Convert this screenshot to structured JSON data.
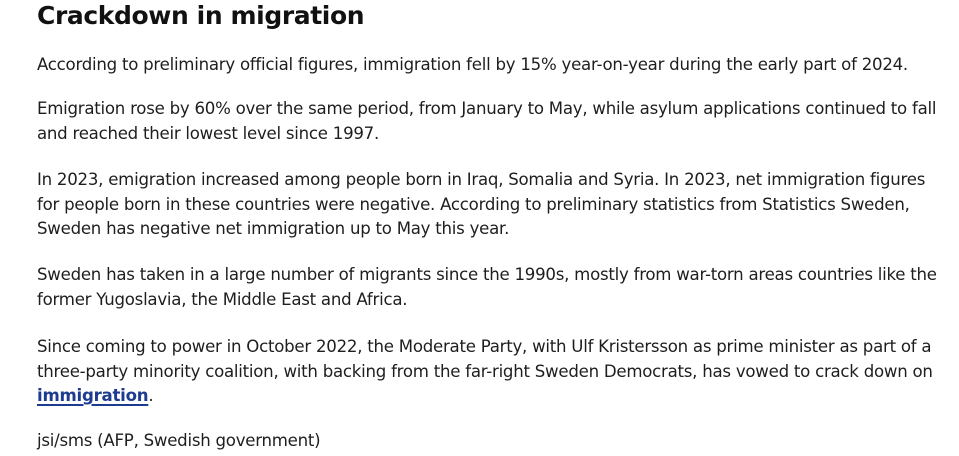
{
  "article": {
    "headline": "Crackdown in migration",
    "paragraphs": [
      "According to preliminary official figures, immigration fell by 15% year-on-year during the early part of 2024.",
      "Emigration rose by 60% over the same period, from January to May, while asylum applications continued to fall and reached their lowest level since 1997.",
      "In 2023, emigration increased among people born in Iraq, Somalia and Syria. In 2023, net immigration figures for people born in these countries were negative. According to preliminary statistics from Statistics Sweden, Sweden has negative net immigration up to May this year.",
      "Sweden has taken in a large number of migrants since the 1990s, mostly from war-torn areas countries like the former Yugoslavia, the Middle East and Africa."
    ],
    "last_paragraph": {
      "text_before_link": "Since coming to power in October 2022, the Moderate Party, with Ulf Kristersson as prime minister as part of a three-party minority coalition, with backing from the far-right Sweden Democrats, has vowed to crack down on ",
      "link_text": "immigration",
      "text_after_link": "."
    },
    "credit": "jsi/sms (AFP, Swedish government)"
  },
  "colors": {
    "text": "#1e1e1e",
    "link": "#1d3b8f"
  }
}
